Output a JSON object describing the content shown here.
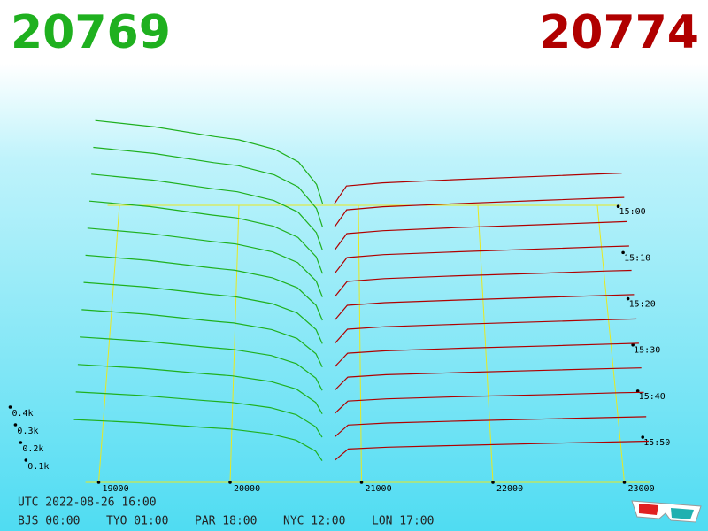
{
  "chart_data": {
    "type": "depth3d",
    "bid_price": 20769,
    "ask_price": 20774,
    "bid_color": "#1fb01f",
    "ask_color": "#b00000",
    "utc": "UTC 2022-08-26 16:00",
    "clocks": [
      "BJS 00:00",
      "TYO 01:00",
      "PAR 18:00",
      "NYC 12:00",
      "LON 17:00"
    ],
    "xticks": [
      19000,
      20000,
      21000,
      22000,
      23000
    ],
    "xlim": [
      18900,
      23200
    ],
    "time_ticks": [
      "15:00",
      "15:10",
      "15:20",
      "15:30",
      "15:40",
      "15:50"
    ],
    "time_lim": [
      "14:59",
      "15:59"
    ],
    "zticks": [
      {
        "value": 100,
        "label": "0.1k"
      },
      {
        "value": 200,
        "label": "0.2k"
      },
      {
        "value": 300,
        "label": "0.3k"
      },
      {
        "value": 400,
        "label": "0.4k"
      }
    ],
    "bid_prices": [
      18800,
      19300,
      19800,
      20000,
      20300,
      20500,
      20650,
      20700
    ],
    "ask_prices": [
      20800,
      20900,
      21200,
      21800,
      22500,
      23000,
      23200
    ],
    "slices": [
      {
        "time": "15:00",
        "bids": [
          560,
          520,
          460,
          440,
          380,
          300,
          160,
          40
        ],
        "asks": [
          40,
          150,
          170,
          190,
          210,
          225,
          230
        ]
      },
      {
        "time": "15:05",
        "bids": [
          532,
          494,
          437,
          418,
          361,
          285,
          152,
          38
        ],
        "asks": [
          38,
          144,
          163,
          182,
          202,
          216,
          221
        ]
      },
      {
        "time": "15:10",
        "bids": [
          504,
          468,
          414,
          396,
          342,
          270,
          144,
          36
        ],
        "asks": [
          37,
          138,
          156,
          175,
          193,
          207,
          212
        ]
      },
      {
        "time": "15:15",
        "bids": [
          476,
          442,
          391,
          374,
          323,
          255,
          136,
          34
        ],
        "asks": [
          35,
          132,
          150,
          167,
          185,
          198,
          202
        ]
      },
      {
        "time": "15:20",
        "bids": [
          448,
          416,
          368,
          352,
          304,
          240,
          128,
          32
        ],
        "asks": [
          34,
          126,
          143,
          160,
          176,
          189,
          193
        ]
      },
      {
        "time": "15:25",
        "bids": [
          420,
          390,
          345,
          330,
          285,
          225,
          120,
          30
        ],
        "asks": [
          32,
          120,
          136,
          152,
          168,
          180,
          184
        ]
      },
      {
        "time": "15:30",
        "bids": [
          392,
          364,
          322,
          308,
          266,
          210,
          112,
          28
        ],
        "asks": [
          30,
          114,
          129,
          144,
          160,
          171,
          175
        ]
      },
      {
        "time": "15:35",
        "bids": [
          364,
          338,
          299,
          286,
          247,
          195,
          104,
          26
        ],
        "asks": [
          29,
          108,
          122,
          137,
          151,
          162,
          166
        ]
      },
      {
        "time": "15:40",
        "bids": [
          336,
          312,
          276,
          264,
          228,
          180,
          96,
          24
        ],
        "asks": [
          27,
          102,
          116,
          129,
          143,
          153,
          156
        ]
      },
      {
        "time": "15:45",
        "bids": [
          308,
          286,
          253,
          242,
          209,
          165,
          88,
          22
        ],
        "asks": [
          26,
          96,
          109,
          122,
          134,
          144,
          147
        ]
      },
      {
        "time": "15:50",
        "bids": [
          280,
          260,
          230,
          220,
          190,
          150,
          80,
          20
        ],
        "asks": [
          24,
          90,
          102,
          114,
          126,
          135,
          138
        ]
      },
      {
        "time": "15:55",
        "bids": [
          252,
          234,
          207,
          198,
          171,
          135,
          72,
          18
        ],
        "asks": [
          22,
          84,
          95,
          106,
          118,
          126,
          129
        ]
      }
    ]
  }
}
